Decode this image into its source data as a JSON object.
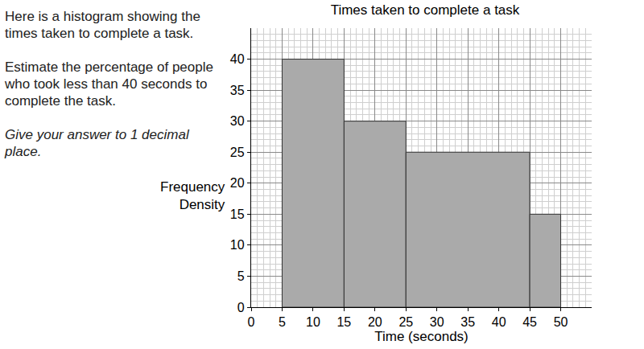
{
  "chart_data": {
    "type": "histogram",
    "title": "Times taken to complete a task",
    "x_label": "Time (seconds)",
    "y_label": "Frequency Density",
    "bins": [
      5,
      15,
      25,
      45,
      50
    ],
    "values": [
      40,
      30,
      25,
      15
    ],
    "color": "#aaaaaa",
    "xlim": [
      0,
      55
    ],
    "ylim": [
      0,
      45
    ],
    "xticks": [
      0,
      5,
      10,
      15,
      20,
      25,
      30,
      35,
      40,
      45,
      50
    ],
    "yticks": [
      0,
      5,
      10,
      15,
      20,
      25,
      30,
      35,
      40
    ],
    "grid": true,
    "annotations": [
      "Here is a histogram showing the times taken to complete a task.",
      "Estimate the percentage of people who took less than 40 seconds to complete the task.",
      "Give your answer to 1 decimal place."
    ]
  }
}
